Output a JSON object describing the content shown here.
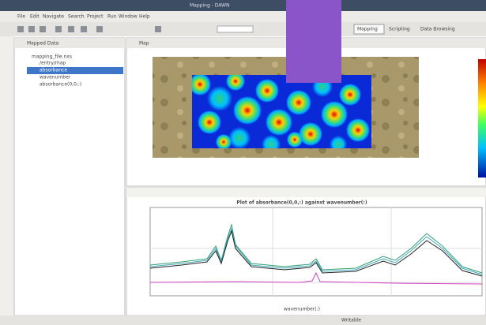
{
  "window": {
    "title": "Mapping - DAWN"
  },
  "menu": [
    "File",
    "Edit",
    "Navigate",
    "Search",
    "Project",
    "Run",
    "Window",
    "Help"
  ],
  "perspectives": [
    "Mapping",
    "Scripting",
    "Data Browsing"
  ],
  "left_panel": {
    "title": "Mapped Data",
    "items": [
      "mapping_file.nxs",
      "/entry/map",
      "absorbance",
      "wavenumber",
      "absorbance(0,0,:)"
    ]
  },
  "map_view": {
    "title": "Map"
  },
  "plot": {
    "title": "Plot of absorbance(0,0,:) against wavenumber(:)",
    "x_label": "wavenumber(:)"
  },
  "status": "Writable"
}
